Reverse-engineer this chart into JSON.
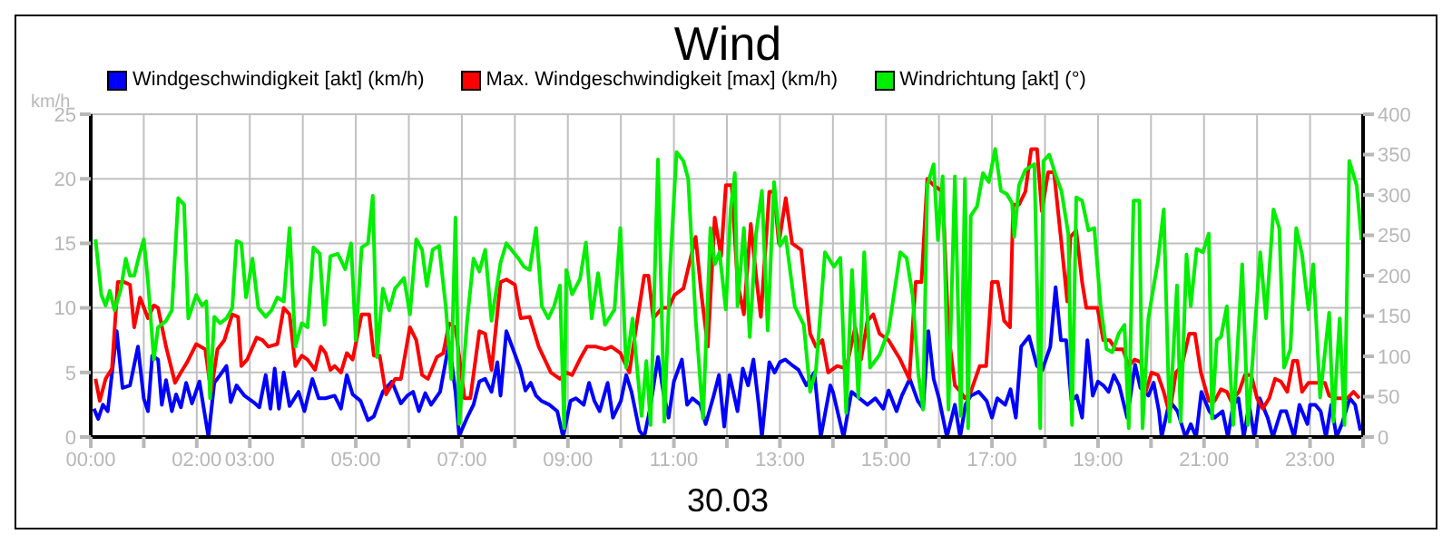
{
  "chart_data": {
    "type": "line",
    "title": "Wind",
    "xlabel": "30.03",
    "ylabel": "km/h",
    "legend": "top",
    "grid": true,
    "xlim": [
      0,
      24
    ],
    "xticks": [
      {
        "value": 0,
        "label": "00:00"
      },
      {
        "value": 1,
        "label": null
      },
      {
        "value": 2,
        "label": "02:00"
      },
      {
        "value": 3,
        "label": "03:00"
      },
      {
        "value": 4,
        "label": null
      },
      {
        "value": 5,
        "label": "05:00"
      },
      {
        "value": 6,
        "label": null
      },
      {
        "value": 7,
        "label": "07:00"
      },
      {
        "value": 8,
        "label": null
      },
      {
        "value": 9,
        "label": "09:00"
      },
      {
        "value": 10,
        "label": null
      },
      {
        "value": 11,
        "label": "11:00"
      },
      {
        "value": 12,
        "label": null
      },
      {
        "value": 13,
        "label": "13:00"
      },
      {
        "value": 14,
        "label": null
      },
      {
        "value": 15,
        "label": "15:00"
      },
      {
        "value": 16,
        "label": null
      },
      {
        "value": 17,
        "label": "17:00"
      },
      {
        "value": 18,
        "label": null
      },
      {
        "value": 19,
        "label": "19:00"
      },
      {
        "value": 20,
        "label": null
      },
      {
        "value": 21,
        "label": "21:00"
      },
      {
        "value": 22,
        "label": null
      },
      {
        "value": 23,
        "label": "23:00"
      },
      {
        "value": 24,
        "label": null
      }
    ],
    "ylim": [
      0,
      25
    ],
    "yticks": [
      0,
      5,
      10,
      15,
      20,
      25
    ],
    "y2lim": [
      0,
      400
    ],
    "y2ticks": [
      0,
      50,
      100,
      150,
      200,
      250,
      300,
      350,
      400
    ],
    "series": [
      {
        "name": "Windgeschwindigkeit [akt] (km/h)",
        "color": "#0000ff",
        "x": [
          0.06,
          0.14,
          0.23,
          0.32,
          0.49,
          0.6,
          0.74,
          0.89,
          1.0,
          1.08,
          1.16,
          1.27,
          1.34,
          1.42,
          1.53,
          1.61,
          1.7,
          1.8,
          1.91,
          2.05,
          2.22,
          2.33,
          2.44,
          2.56,
          2.64,
          2.75,
          2.9,
          3.07,
          3.18,
          3.3,
          3.39,
          3.47,
          3.55,
          3.64,
          3.75,
          3.92,
          4.03,
          4.18,
          4.3,
          4.43,
          4.6,
          4.72,
          4.83,
          4.94,
          5.09,
          5.23,
          5.34,
          5.51,
          5.68,
          5.85,
          5.97,
          6.08,
          6.19,
          6.31,
          6.42,
          6.59,
          6.76,
          6.88,
          6.95,
          7.1,
          7.22,
          7.33,
          7.44,
          7.56,
          7.67,
          7.73,
          7.84,
          8.1,
          8.2,
          8.3,
          8.4,
          8.5,
          8.65,
          8.8,
          8.91,
          9.05,
          9.15,
          9.3,
          9.4,
          9.5,
          9.6,
          9.75,
          9.85,
          10.0,
          10.1,
          10.2,
          10.35,
          10.44,
          10.55,
          10.7,
          10.8,
          10.9,
          11.0,
          11.15,
          11.25,
          11.35,
          11.5,
          11.6,
          11.75,
          11.85,
          11.95,
          12.05,
          12.2,
          12.3,
          12.4,
          12.5,
          12.6,
          12.66,
          12.8,
          12.9,
          13.0,
          13.1,
          13.25,
          13.35,
          13.5,
          13.65,
          13.77,
          13.95,
          14.0,
          14.2,
          14.35,
          14.5,
          14.65,
          14.8,
          14.95,
          15.05,
          15.2,
          15.3,
          15.45,
          15.6,
          15.7,
          15.8,
          15.9,
          16.0,
          16.15,
          16.3,
          16.4,
          16.5,
          16.6,
          16.75,
          16.9,
          17.0,
          17.1,
          17.25,
          17.35,
          17.45,
          17.55,
          17.7,
          17.85,
          17.95,
          18.1,
          18.2,
          18.3,
          18.4,
          18.5,
          18.6,
          18.7,
          18.8,
          18.9,
          19.0,
          19.1,
          19.2,
          19.3,
          19.4,
          19.55,
          19.7,
          19.8,
          19.95,
          20.05,
          20.15,
          20.2,
          20.35,
          20.5,
          20.65,
          20.75,
          20.85,
          20.95,
          21.1,
          21.2,
          21.35,
          21.45,
          21.55,
          21.65,
          21.75,
          21.85,
          21.95,
          22.05,
          22.2,
          22.3,
          22.45,
          22.55,
          22.7,
          22.8,
          22.95,
          23.0,
          23.1,
          23.2,
          23.3,
          23.4,
          23.5,
          23.6,
          23.75,
          23.85,
          23.95
        ],
        "values": [
          2.2,
          1.4,
          2.5,
          2.0,
          8.2,
          3.8,
          4.0,
          7.0,
          3.0,
          2.0,
          6.3,
          6.0,
          2.5,
          4.4,
          2.0,
          3.3,
          2.3,
          4.2,
          2.6,
          4.3,
          0,
          4.2,
          4.8,
          5.5,
          2.7,
          4.0,
          3.2,
          2.7,
          2.3,
          4.8,
          2.2,
          5.3,
          2.2,
          5.0,
          2.4,
          3.5,
          2.0,
          4.5,
          3.0,
          3.0,
          3.2,
          2.2,
          4.8,
          3.3,
          2.8,
          1.3,
          1.6,
          3.5,
          4.3,
          2.6,
          3.2,
          3.5,
          2.0,
          3.4,
          2.5,
          3.5,
          7.3,
          3.5,
          0.1,
          1.5,
          2.5,
          4.3,
          4.5,
          3.5,
          5.8,
          3.2,
          8.2,
          5.3,
          3.6,
          4.2,
          3.2,
          2.8,
          2.5,
          2.0,
          0,
          2.8,
          3.0,
          2.5,
          4.2,
          2.8,
          2.0,
          4.2,
          1.5,
          2.8,
          4.8,
          3.5,
          0.5,
          0,
          2.2,
          6.2,
          3.5,
          1.5,
          4.3,
          6.0,
          2.5,
          3.0,
          2.5,
          1.0,
          3.2,
          4.8,
          0.8,
          4.8,
          2.0,
          5.3,
          4.0,
          6.0,
          2.5,
          0,
          5.8,
          5.0,
          5.8,
          6.0,
          5.5,
          5.2,
          4.0,
          5.0,
          0,
          4.0,
          3.5,
          0,
          3.5,
          3.0,
          2.5,
          3.0,
          2.2,
          3.6,
          2.0,
          3.2,
          4.5,
          2.8,
          2.2,
          8.2,
          4.5,
          3.0,
          0,
          2.5,
          0,
          2.5,
          3.2,
          3.5,
          2.8,
          1.5,
          3.0,
          2.5,
          3.7,
          1.5,
          7.0,
          7.8,
          5.5,
          5.2,
          7.0,
          11.6,
          7.5,
          7.5,
          2.8,
          3.2,
          1.5,
          7.5,
          3.2,
          4.3,
          4.0,
          3.5,
          4.8,
          4.0,
          1.5,
          5.6,
          3.8,
          3.2,
          4.2,
          2.0,
          0,
          2.8,
          2.0,
          0,
          1.0,
          0,
          3.5,
          2.0,
          1.5,
          2.0,
          0,
          2.5,
          3.0,
          0,
          2.5,
          0,
          3.0,
          1.5,
          0,
          2.0,
          2.0,
          0,
          2.5,
          1.0,
          2.5,
          2.5,
          2.0,
          0,
          2.5,
          0,
          1.0,
          3.0,
          2.5,
          0.5
        ]
      },
      {
        "name": "Max. Windgeschwindigkeit [max] (km/h)",
        "color": "#ff0000",
        "x": [
          0.09,
          0.17,
          0.28,
          0.4,
          0.51,
          0.63,
          0.74,
          0.82,
          0.93,
          1.08,
          1.19,
          1.27,
          1.42,
          1.59,
          1.7,
          1.82,
          1.99,
          2.16,
          2.27,
          2.39,
          2.52,
          2.67,
          2.78,
          2.84,
          2.95,
          3.13,
          3.24,
          3.35,
          3.52,
          3.64,
          3.75,
          3.86,
          3.98,
          4.09,
          4.23,
          4.34,
          4.43,
          4.52,
          4.6,
          4.72,
          4.83,
          4.94,
          5.11,
          5.25,
          5.34,
          5.45,
          5.57,
          5.74,
          5.85,
          6.02,
          6.14,
          6.25,
          6.36,
          6.53,
          6.65,
          6.76,
          6.88,
          7.05,
          7.16,
          7.33,
          7.44,
          7.56,
          7.73,
          7.84,
          8.0,
          8.11,
          8.28,
          8.45,
          8.68,
          8.85,
          8.97,
          9.08,
          9.25,
          9.36,
          9.53,
          9.7,
          9.82,
          9.99,
          10.16,
          10.27,
          10.44,
          10.52,
          10.61,
          10.78,
          10.9,
          11.01,
          11.18,
          11.41,
          11.52,
          11.64,
          11.77,
          11.89,
          11.98,
          12.09,
          12.2,
          12.32,
          12.45,
          12.55,
          12.64,
          12.8,
          12.89,
          12.98,
          13.11,
          13.23,
          13.4,
          13.57,
          13.68,
          13.8,
          13.91,
          14.08,
          14.25,
          14.42,
          14.53,
          14.65,
          14.76,
          14.88,
          15.05,
          15.27,
          15.44,
          15.56,
          15.67,
          15.78,
          15.9,
          16.07,
          16.18,
          16.3,
          16.41,
          16.49,
          16.6,
          16.77,
          16.89,
          17.0,
          17.11,
          17.23,
          17.34,
          17.4,
          17.51,
          17.63,
          17.74,
          17.85,
          17.94,
          18.06,
          18.17,
          18.31,
          18.42,
          18.48,
          18.59,
          18.7,
          18.78,
          18.99,
          19.1,
          19.22,
          19.33,
          19.47,
          19.58,
          19.69,
          19.81,
          19.9,
          20.01,
          20.13,
          20.24,
          20.35,
          20.47,
          20.58,
          20.72,
          20.83,
          20.94,
          21.09,
          21.2,
          21.32,
          21.43,
          21.51,
          21.66,
          21.77,
          21.89,
          22.0,
          22.11,
          22.23,
          22.34,
          22.45,
          22.57,
          22.68,
          22.76,
          22.85,
          22.97,
          23.14,
          23.28,
          23.36,
          23.48,
          23.7,
          23.82,
          23.93
        ],
        "values": [
          4.5,
          2.8,
          4.5,
          5.3,
          12,
          12,
          11.8,
          8.5,
          10.8,
          9.2,
          10.2,
          10,
          7,
          4.2,
          5,
          5.8,
          7.2,
          6.8,
          3.5,
          6.8,
          7.5,
          9.5,
          9.3,
          5.5,
          6.0,
          7.7,
          7.5,
          7.0,
          7.2,
          10,
          9.5,
          5.5,
          6.3,
          6.0,
          5.2,
          7.0,
          6.5,
          5.2,
          5.5,
          5.0,
          6.5,
          6.0,
          9.5,
          9.5,
          6.3,
          6.3,
          3.3,
          4.5,
          4.5,
          8.5,
          7.5,
          4.8,
          4.5,
          6.2,
          6.5,
          8.8,
          8.5,
          3.0,
          3.0,
          8.2,
          8.0,
          5.2,
          12,
          12.2,
          11.8,
          9.2,
          9.3,
          7.0,
          5.0,
          4.5,
          5.0,
          4.8,
          6.2,
          7.0,
          7.0,
          6.8,
          7.0,
          6.5,
          5.0,
          8.0,
          12.5,
          12.5,
          9.2,
          10,
          10,
          11,
          11.5,
          15.5,
          11,
          7,
          17,
          14,
          19.5,
          19.5,
          12,
          9.5,
          16.5,
          12.5,
          9.3,
          19,
          19,
          15,
          18.5,
          15,
          14.5,
          8,
          7,
          7.5,
          5,
          5.5,
          5.3,
          8.5,
          6,
          9,
          9.5,
          8,
          7.5,
          6,
          4.5,
          12,
          12,
          20,
          19.5,
          19,
          8,
          4,
          3.5,
          3.0,
          3.5,
          5.5,
          5.5,
          12,
          12,
          9,
          8.5,
          18,
          18,
          19,
          22.3,
          22.3,
          17.5,
          20.5,
          20.5,
          15,
          10.5,
          15.5,
          16,
          12,
          10,
          10,
          7.5,
          7.5,
          6.8,
          6.8,
          5.5,
          6,
          5.8,
          3.5,
          5,
          4.8,
          3.5,
          1.8,
          5,
          5.5,
          8,
          8,
          5,
          2.8,
          2.8,
          3.7,
          3.5,
          2.8,
          3.5,
          4.8,
          4.8,
          3,
          2.2,
          3,
          4.5,
          4.3,
          3.5,
          5.9,
          5.9,
          3.5,
          4.2,
          4.2,
          4.2,
          3.2,
          3,
          3,
          3.5,
          3
        ]
      },
      {
        "name": "Windrichtung [akt] (°)",
        "color": "#00ee00",
        "axis": "y2",
        "x": [
          0.09,
          0.2,
          0.28,
          0.36,
          0.45,
          0.57,
          0.66,
          0.74,
          0.82,
          0.91,
          1.0,
          1.08,
          1.19,
          1.27,
          1.42,
          1.53,
          1.65,
          1.76,
          1.84,
          1.99,
          2.1,
          2.18,
          2.25,
          2.33,
          2.44,
          2.56,
          2.67,
          2.75,
          2.84,
          2.93,
          3.05,
          3.16,
          3.3,
          3.41,
          3.52,
          3.64,
          3.75,
          3.86,
          3.98,
          4.09,
          4.2,
          4.32,
          4.41,
          4.52,
          4.66,
          4.8,
          4.91,
          5.0,
          5.11,
          5.23,
          5.32,
          5.4,
          5.51,
          5.63,
          5.74,
          5.91,
          6.02,
          6.14,
          6.25,
          6.34,
          6.45,
          6.57,
          6.7,
          6.8,
          6.88,
          6.95,
          7.1,
          7.22,
          7.33,
          7.44,
          7.56,
          7.73,
          7.84,
          8.06,
          8.17,
          8.28,
          8.4,
          8.51,
          8.63,
          8.74,
          8.85,
          8.93,
          8.97,
          9.08,
          9.23,
          9.34,
          9.45,
          9.57,
          9.7,
          9.88,
          9.99,
          10.1,
          10.22,
          10.39,
          10.48,
          10.56,
          10.7,
          10.82,
          10.93,
          11.05,
          11.18,
          11.27,
          11.41,
          11.55,
          11.69,
          11.77,
          11.86,
          11.98,
          12.07,
          12.15,
          12.2,
          12.32,
          12.43,
          12.55,
          12.66,
          12.77,
          12.89,
          13.0,
          13.11,
          13.28,
          13.45,
          13.57,
          13.68,
          13.85,
          14.02,
          14.14,
          14.25,
          14.36,
          14.48,
          14.59,
          14.7,
          14.88,
          15.05,
          15.27,
          15.39,
          15.5,
          15.61,
          15.7,
          15.78,
          15.9,
          15.98,
          16.07,
          16.18,
          16.3,
          16.41,
          16.49,
          16.55,
          16.6,
          16.72,
          16.83,
          16.94,
          17.06,
          17.17,
          17.28,
          17.38,
          17.42,
          17.51,
          17.63,
          17.8,
          17.91,
          17.97,
          18.08,
          18.19,
          18.31,
          18.44,
          18.51,
          18.59,
          18.7,
          18.82,
          18.93,
          19.05,
          19.16,
          19.27,
          19.39,
          19.5,
          19.58,
          19.67,
          19.78,
          19.84,
          19.95,
          20.13,
          20.24,
          20.35,
          20.49,
          20.56,
          20.67,
          20.75,
          20.86,
          20.98,
          21.09,
          21.15,
          21.24,
          21.32,
          21.43,
          21.55,
          21.72,
          21.83,
          22.06,
          22.17,
          22.31,
          22.42,
          22.51,
          22.63,
          22.74,
          22.85,
          22.97,
          23.06,
          23.19,
          23.36,
          23.44,
          23.56,
          23.65,
          23.74,
          23.88,
          23.97
        ],
        "values": [
          245,
          176,
          163,
          181,
          157,
          184,
          221,
          200,
          200,
          224,
          245,
          192,
          96,
          136,
          144,
          157,
          296,
          288,
          147,
          176,
          163,
          168,
          48,
          149,
          141,
          147,
          160,
          243,
          240,
          173,
          221,
          160,
          149,
          157,
          173,
          168,
          259,
          112,
          141,
          136,
          235,
          227,
          139,
          224,
          227,
          208,
          240,
          120,
          235,
          240,
          299,
          99,
          184,
          157,
          184,
          197,
          152,
          245,
          232,
          187,
          232,
          237,
          160,
          72,
          272,
          16,
          144,
          221,
          205,
          232,
          144,
          216,
          240,
          222,
          211,
          207,
          259,
          162,
          147,
          162,
          188,
          11,
          207,
          177,
          196,
          241,
          147,
          203,
          139,
          158,
          259,
          86,
          147,
          26,
          94,
          15,
          344,
          19,
          211,
          353,
          342,
          320,
          147,
          23,
          259,
          214,
          229,
          158,
          282,
          327,
          162,
          259,
          124,
          252,
          305,
          132,
          316,
          237,
          248,
          162,
          139,
          56,
          83,
          229,
          211,
          222,
          30,
          207,
          49,
          229,
          86,
          102,
          132,
          229,
          222,
          177,
          79,
          34,
          312,
          338,
          244,
          323,
          34,
          323,
          26,
          320,
          11,
          274,
          286,
          327,
          316,
          357,
          305,
          301,
          290,
          248,
          312,
          331,
          338,
          11,
          342,
          350,
          327,
          305,
          252,
          15,
          297,
          293,
          256,
          259,
          162,
          109,
          105,
          128,
          139,
          11,
          293,
          293,
          11,
          147,
          218,
          282,
          19,
          188,
          19,
          226,
          162,
          233,
          229,
          252,
          23,
          120,
          124,
          162,
          15,
          214,
          15,
          229,
          147,
          282,
          259,
          86,
          109,
          259,
          226,
          158,
          214,
          49,
          154,
          19,
          147,
          15,
          342,
          312,
          244
        ]
      }
    ]
  }
}
